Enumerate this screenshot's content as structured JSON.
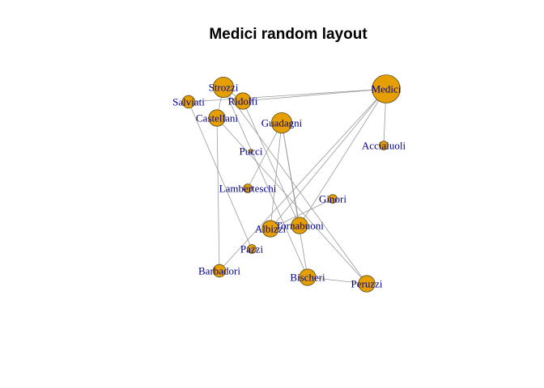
{
  "title": "Medici random layout",
  "colors": {
    "node_fill": "#e69f00",
    "label": "#00008b",
    "edge": "#9a9a9a",
    "background": "#ffffff"
  },
  "nodes": [
    {
      "id": "medici",
      "label": "Medici",
      "degree": 6
    },
    {
      "id": "strozzi",
      "label": "Strozzi",
      "degree": 4
    },
    {
      "id": "ridolfi",
      "label": "Ridolfi",
      "degree": 3
    },
    {
      "id": "salviati",
      "label": "Salviati",
      "degree": 2
    },
    {
      "id": "castellani",
      "label": "Castellani",
      "degree": 3
    },
    {
      "id": "guadagni",
      "label": "Guadagni",
      "degree": 4
    },
    {
      "id": "acciaiuoli",
      "label": "Acciaiuoli",
      "degree": 1
    },
    {
      "id": "pucci",
      "label": "Pucci",
      "degree": 0
    },
    {
      "id": "lamberteschi",
      "label": "Lamberteschi",
      "degree": 1
    },
    {
      "id": "ginori",
      "label": "Ginori",
      "degree": 1
    },
    {
      "id": "tornabuoni",
      "label": "Tornabuoni",
      "degree": 3
    },
    {
      "id": "albizzi",
      "label": "Albizzi",
      "degree": 3
    },
    {
      "id": "pazzi",
      "label": "Pazzi",
      "degree": 1
    },
    {
      "id": "barbadori",
      "label": "Barbadori",
      "degree": 2
    },
    {
      "id": "bischeri",
      "label": "Bischeri",
      "degree": 3
    },
    {
      "id": "peruzzi",
      "label": "Peruzzi",
      "degree": 3
    }
  ],
  "edges": [
    [
      "medici",
      "acciaiuoli"
    ],
    [
      "medici",
      "barbadori"
    ],
    [
      "medici",
      "ridolfi"
    ],
    [
      "medici",
      "salviati"
    ],
    [
      "medici",
      "tornabuoni"
    ],
    [
      "medici",
      "albizzi"
    ],
    [
      "strozzi",
      "ridolfi"
    ],
    [
      "strozzi",
      "castellani"
    ],
    [
      "strozzi",
      "bischeri"
    ],
    [
      "strozzi",
      "peruzzi"
    ],
    [
      "castellani",
      "barbadori"
    ],
    [
      "castellani",
      "peruzzi"
    ],
    [
      "guadagni",
      "tornabuoni"
    ],
    [
      "guadagni",
      "lamberteschi"
    ],
    [
      "guadagni",
      "albizzi"
    ],
    [
      "guadagni",
      "bischeri"
    ],
    [
      "ridolfi",
      "tornabuoni"
    ],
    [
      "salviati",
      "pazzi"
    ],
    [
      "albizzi",
      "ginori"
    ],
    [
      "bischeri",
      "peruzzi"
    ]
  ]
}
